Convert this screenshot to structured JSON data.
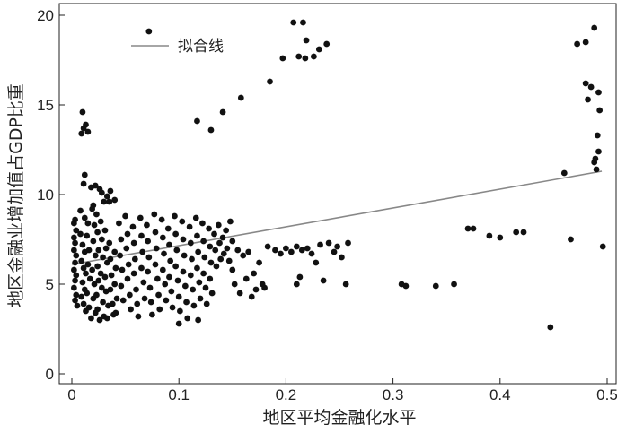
{
  "chart_data": {
    "type": "scatter",
    "xlabel": "地区平均金融化水平",
    "ylabel": "地区金融业增加值占GDP比重",
    "xlim": [
      0,
      0.5
    ],
    "ylim": [
      0,
      20
    ],
    "xticks": [
      "0",
      "0.1",
      "0.2",
      "0.3",
      "0.4",
      "0.5"
    ],
    "yticks": [
      "0",
      "5",
      "10",
      "15",
      "20"
    ],
    "grid": false,
    "legend": {
      "position": "top-left",
      "entries": [
        "拟合线"
      ]
    },
    "fit_line": {
      "name": "拟合线",
      "x": [
        0.0,
        0.495
      ],
      "y": [
        6.1,
        11.3
      ],
      "color": "#888888"
    },
    "point_color": "#111111",
    "series": [
      {
        "points": [
          [
            0.072,
            19.1
          ],
          [
            0.117,
            14.1
          ],
          [
            0.13,
            13.6
          ],
          [
            0.141,
            14.6
          ],
          [
            0.158,
            15.4
          ],
          [
            0.185,
            16.3
          ],
          [
            0.197,
            17.6
          ],
          [
            0.207,
            19.6
          ],
          [
            0.216,
            19.6
          ],
          [
            0.212,
            17.7
          ],
          [
            0.218,
            17.6
          ],
          [
            0.226,
            17.7
          ],
          [
            0.219,
            18.6
          ],
          [
            0.231,
            18.1
          ],
          [
            0.238,
            18.4
          ],
          [
            0.01,
            14.6
          ],
          [
            0.011,
            13.7
          ],
          [
            0.013,
            13.9
          ],
          [
            0.015,
            13.5
          ],
          [
            0.009,
            13.4
          ],
          [
            0.012,
            11.1
          ],
          [
            0.011,
            10.6
          ],
          [
            0.018,
            10.4
          ],
          [
            0.022,
            10.5
          ],
          [
            0.026,
            10.3
          ],
          [
            0.028,
            10.1
          ],
          [
            0.03,
            9.6
          ],
          [
            0.033,
            9.9
          ],
          [
            0.036,
            10.2
          ],
          [
            0.04,
            9.7
          ],
          [
            0.02,
            9.4
          ],
          [
            0.035,
            9.6
          ],
          [
            0.003,
            8.6
          ],
          [
            0.002,
            8.4
          ],
          [
            0.004,
            8.0
          ],
          [
            0.002,
            7.6
          ],
          [
            0.003,
            7.3
          ],
          [
            0.002,
            6.9
          ],
          [
            0.004,
            6.6
          ],
          [
            0.003,
            6.2
          ],
          [
            0.002,
            5.8
          ],
          [
            0.004,
            5.5
          ],
          [
            0.003,
            5.2
          ],
          [
            0.002,
            4.8
          ],
          [
            0.004,
            4.4
          ],
          [
            0.003,
            4.1
          ],
          [
            0.005,
            3.8
          ],
          [
            0.008,
            7.8
          ],
          [
            0.01,
            7.2
          ],
          [
            0.012,
            6.8
          ],
          [
            0.009,
            6.3
          ],
          [
            0.011,
            5.9
          ],
          [
            0.013,
            5.6
          ],
          [
            0.01,
            5.1
          ],
          [
            0.012,
            4.7
          ],
          [
            0.009,
            4.3
          ],
          [
            0.011,
            3.9
          ],
          [
            0.013,
            3.5
          ],
          [
            0.008,
            9.1
          ],
          [
            0.012,
            8.7
          ],
          [
            0.015,
            8.4
          ],
          [
            0.014,
            7.7
          ],
          [
            0.016,
            6.9
          ],
          [
            0.015,
            6.1
          ],
          [
            0.017,
            5.3
          ],
          [
            0.014,
            4.5
          ],
          [
            0.016,
            3.7
          ],
          [
            0.019,
            9.2
          ],
          [
            0.021,
            8.3
          ],
          [
            0.02,
            7.4
          ],
          [
            0.022,
            6.6
          ],
          [
            0.019,
            5.8
          ],
          [
            0.021,
            5.0
          ],
          [
            0.02,
            4.2
          ],
          [
            0.022,
            3.4
          ],
          [
            0.018,
            3.1
          ],
          [
            0.023,
            8.9
          ],
          [
            0.024,
            7.9
          ],
          [
            0.025,
            6.9
          ],
          [
            0.024,
            6.0
          ],
          [
            0.025,
            5.2
          ],
          [
            0.023,
            4.4
          ],
          [
            0.024,
            3.6
          ],
          [
            0.026,
            3.0
          ],
          [
            0.027,
            8.5
          ],
          [
            0.028,
            7.5
          ],
          [
            0.029,
            6.5
          ],
          [
            0.027,
            5.6
          ],
          [
            0.028,
            4.8
          ],
          [
            0.029,
            4.0
          ],
          [
            0.03,
            3.2
          ],
          [
            0.031,
            8.0
          ],
          [
            0.032,
            7.0
          ],
          [
            0.033,
            6.2
          ],
          [
            0.031,
            5.4
          ],
          [
            0.032,
            4.6
          ],
          [
            0.034,
            3.8
          ],
          [
            0.033,
            3.1
          ],
          [
            0.035,
            7.3
          ],
          [
            0.036,
            6.4
          ],
          [
            0.037,
            5.5
          ],
          [
            0.036,
            4.7
          ],
          [
            0.038,
            3.9
          ],
          [
            0.039,
            3.3
          ],
          [
            0.04,
            6.8
          ],
          [
            0.041,
            5.9
          ],
          [
            0.04,
            5.0
          ],
          [
            0.042,
            4.2
          ],
          [
            0.041,
            3.4
          ],
          [
            0.044,
            8.4
          ],
          [
            0.046,
            7.5
          ],
          [
            0.045,
            6.6
          ],
          [
            0.047,
            5.8
          ],
          [
            0.046,
            4.9
          ],
          [
            0.048,
            4.1
          ],
          [
            0.05,
            8.8
          ],
          [
            0.052,
            7.8
          ],
          [
            0.051,
            7.0
          ],
          [
            0.053,
            6.1
          ],
          [
            0.052,
            5.3
          ],
          [
            0.054,
            4.4
          ],
          [
            0.055,
            3.6
          ],
          [
            0.057,
            8.2
          ],
          [
            0.058,
            7.3
          ],
          [
            0.059,
            6.4
          ],
          [
            0.058,
            5.6
          ],
          [
            0.06,
            4.7
          ],
          [
            0.061,
            3.9
          ],
          [
            0.062,
            3.2
          ],
          [
            0.064,
            8.7
          ],
          [
            0.065,
            7.7
          ],
          [
            0.066,
            6.8
          ],
          [
            0.065,
            5.9
          ],
          [
            0.067,
            5.1
          ],
          [
            0.068,
            4.2
          ],
          [
            0.07,
            8.3
          ],
          [
            0.071,
            7.4
          ],
          [
            0.072,
            6.5
          ],
          [
            0.071,
            5.7
          ],
          [
            0.073,
            4.8
          ],
          [
            0.074,
            4.0
          ],
          [
            0.075,
            3.3
          ],
          [
            0.077,
            8.9
          ],
          [
            0.078,
            7.9
          ],
          [
            0.079,
            7.0
          ],
          [
            0.078,
            6.1
          ],
          [
            0.08,
            5.3
          ],
          [
            0.081,
            4.4
          ],
          [
            0.082,
            3.6
          ],
          [
            0.084,
            8.6
          ],
          [
            0.085,
            7.6
          ],
          [
            0.086,
            6.7
          ],
          [
            0.085,
            5.8
          ],
          [
            0.087,
            5.0
          ],
          [
            0.088,
            4.1
          ],
          [
            0.09,
            8.1
          ],
          [
            0.091,
            7.2
          ],
          [
            0.092,
            6.3
          ],
          [
            0.091,
            5.4
          ],
          [
            0.093,
            4.6
          ],
          [
            0.094,
            3.7
          ],
          [
            0.096,
            8.8
          ],
          [
            0.097,
            7.8
          ],
          [
            0.098,
            6.9
          ],
          [
            0.097,
            6.0
          ],
          [
            0.099,
            5.2
          ],
          [
            0.1,
            4.3
          ],
          [
            0.101,
            3.5
          ],
          [
            0.1,
            2.8
          ],
          [
            0.103,
            8.5
          ],
          [
            0.104,
            7.5
          ],
          [
            0.105,
            6.6
          ],
          [
            0.104,
            5.7
          ],
          [
            0.106,
            4.9
          ],
          [
            0.107,
            4.0
          ],
          [
            0.108,
            3.1
          ],
          [
            0.11,
            8.2
          ],
          [
            0.111,
            7.3
          ],
          [
            0.112,
            6.4
          ],
          [
            0.111,
            5.5
          ],
          [
            0.113,
            4.7
          ],
          [
            0.114,
            3.8
          ],
          [
            0.116,
            8.7
          ],
          [
            0.117,
            7.7
          ],
          [
            0.118,
            6.8
          ],
          [
            0.117,
            5.9
          ],
          [
            0.119,
            5.1
          ],
          [
            0.12,
            4.2
          ],
          [
            0.118,
            3.0
          ],
          [
            0.122,
            8.4
          ],
          [
            0.123,
            7.4
          ],
          [
            0.124,
            6.5
          ],
          [
            0.123,
            5.6
          ],
          [
            0.125,
            4.8
          ],
          [
            0.126,
            3.9
          ],
          [
            0.128,
            8.1
          ],
          [
            0.129,
            7.1
          ],
          [
            0.13,
            6.2
          ],
          [
            0.129,
            5.3
          ],
          [
            0.131,
            4.5
          ],
          [
            0.133,
            7.8
          ],
          [
            0.134,
            6.9
          ],
          [
            0.135,
            6.0
          ],
          [
            0.137,
            8.3
          ],
          [
            0.138,
            7.3
          ],
          [
            0.139,
            6.4
          ],
          [
            0.141,
            7.6
          ],
          [
            0.142,
            6.7
          ],
          [
            0.144,
            8.0
          ],
          [
            0.145,
            7.0
          ],
          [
            0.147,
            6.3
          ],
          [
            0.148,
            8.5
          ],
          [
            0.15,
            7.4
          ],
          [
            0.15,
            5.8
          ],
          [
            0.152,
            5.0
          ],
          [
            0.155,
            6.9
          ],
          [
            0.157,
            4.5
          ],
          [
            0.16,
            6.6
          ],
          [
            0.163,
            5.3
          ],
          [
            0.165,
            6.8
          ],
          [
            0.168,
            4.3
          ],
          [
            0.17,
            5.6
          ],
          [
            0.172,
            4.7
          ],
          [
            0.175,
            6.2
          ],
          [
            0.178,
            5.0
          ],
          [
            0.18,
            4.8
          ],
          [
            0.183,
            7.1
          ],
          [
            0.19,
            6.9
          ],
          [
            0.195,
            6.7
          ],
          [
            0.2,
            7.0
          ],
          [
            0.205,
            6.8
          ],
          [
            0.21,
            7.1
          ],
          [
            0.213,
            5.4
          ],
          [
            0.215,
            6.9
          ],
          [
            0.22,
            7.0
          ],
          [
            0.224,
            6.7
          ],
          [
            0.228,
            6.2
          ],
          [
            0.232,
            7.2
          ],
          [
            0.235,
            5.2
          ],
          [
            0.24,
            7.3
          ],
          [
            0.245,
            6.8
          ],
          [
            0.248,
            7.1
          ],
          [
            0.252,
            6.5
          ],
          [
            0.256,
            5.0
          ],
          [
            0.258,
            7.3
          ],
          [
            0.21,
            5.0
          ],
          [
            0.308,
            5.0
          ],
          [
            0.312,
            4.9
          ],
          [
            0.34,
            4.9
          ],
          [
            0.357,
            5.0
          ],
          [
            0.37,
            8.1
          ],
          [
            0.375,
            8.1
          ],
          [
            0.39,
            7.7
          ],
          [
            0.4,
            7.6
          ],
          [
            0.415,
            7.9
          ],
          [
            0.422,
            7.9
          ],
          [
            0.447,
            2.6
          ],
          [
            0.46,
            11.2
          ],
          [
            0.466,
            7.5
          ],
          [
            0.472,
            18.4
          ],
          [
            0.48,
            18.5
          ],
          [
            0.48,
            16.2
          ],
          [
            0.482,
            15.3
          ],
          [
            0.485,
            16.0
          ],
          [
            0.488,
            19.3
          ],
          [
            0.488,
            11.8
          ],
          [
            0.489,
            12.0
          ],
          [
            0.49,
            11.4
          ],
          [
            0.491,
            13.3
          ],
          [
            0.492,
            15.7
          ],
          [
            0.492,
            12.4
          ],
          [
            0.493,
            14.7
          ],
          [
            0.496,
            7.1
          ]
        ]
      }
    ]
  }
}
